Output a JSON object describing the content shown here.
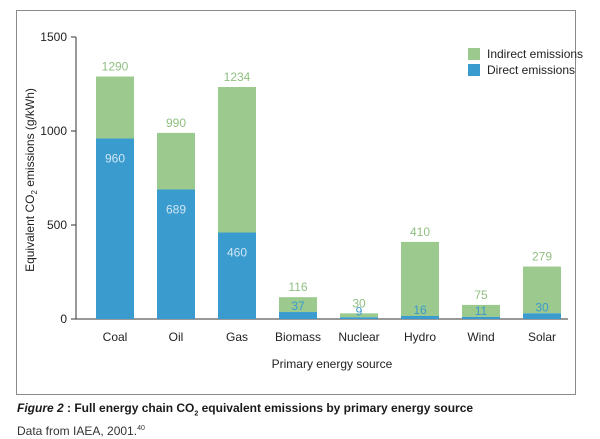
{
  "chart_data": {
    "type": "bar",
    "stacked": true,
    "categories": [
      "Coal",
      "Oil",
      "Gas",
      "Biomass",
      "Nuclear",
      "Hydro",
      "Wind",
      "Solar"
    ],
    "series": [
      {
        "name": "Direct emissions",
        "color": "#3a9bcf",
        "values": [
          960,
          689,
          460,
          37,
          9,
          16,
          11,
          30
        ]
      },
      {
        "name": "Indirect emissions",
        "color": "#9cc98d",
        "values": [
          330,
          301,
          774,
          79,
          21,
          394,
          64,
          249
        ]
      }
    ],
    "totals": [
      1290,
      990,
      1234,
      116,
      30,
      410,
      75,
      279
    ],
    "total_labels": [
      "1290",
      "990",
      "1234",
      "116",
      "30",
      "410",
      "75",
      "279"
    ],
    "direct_labels": [
      "960",
      "689",
      "460",
      "37",
      "9",
      "16",
      "11",
      "30"
    ],
    "ylim": [
      0,
      1500
    ],
    "yticks": [
      0,
      500,
      1000,
      1500
    ],
    "ytick_labels": [
      "0",
      "500",
      "1000",
      "1500"
    ],
    "ylabel_main": "Equivalent CO",
    "ylabel_sub": "2",
    "ylabel_rest": " emissions (g/kWh)",
    "xlabel": "Primary energy source",
    "legend": [
      {
        "label": "Indirect emissions",
        "color": "#9cc98d"
      },
      {
        "label": "Direct emissions",
        "color": "#3a9bcf"
      }
    ],
    "legend_position": "top-right"
  },
  "caption": {
    "figure_label": "Figure 2",
    "title_pre": " : Full energy chain CO",
    "title_sub": "2",
    "title_post": " equivalent emissions by primary energy source",
    "source_text": "Data from IAEA, 2001.",
    "source_ref": "40"
  }
}
